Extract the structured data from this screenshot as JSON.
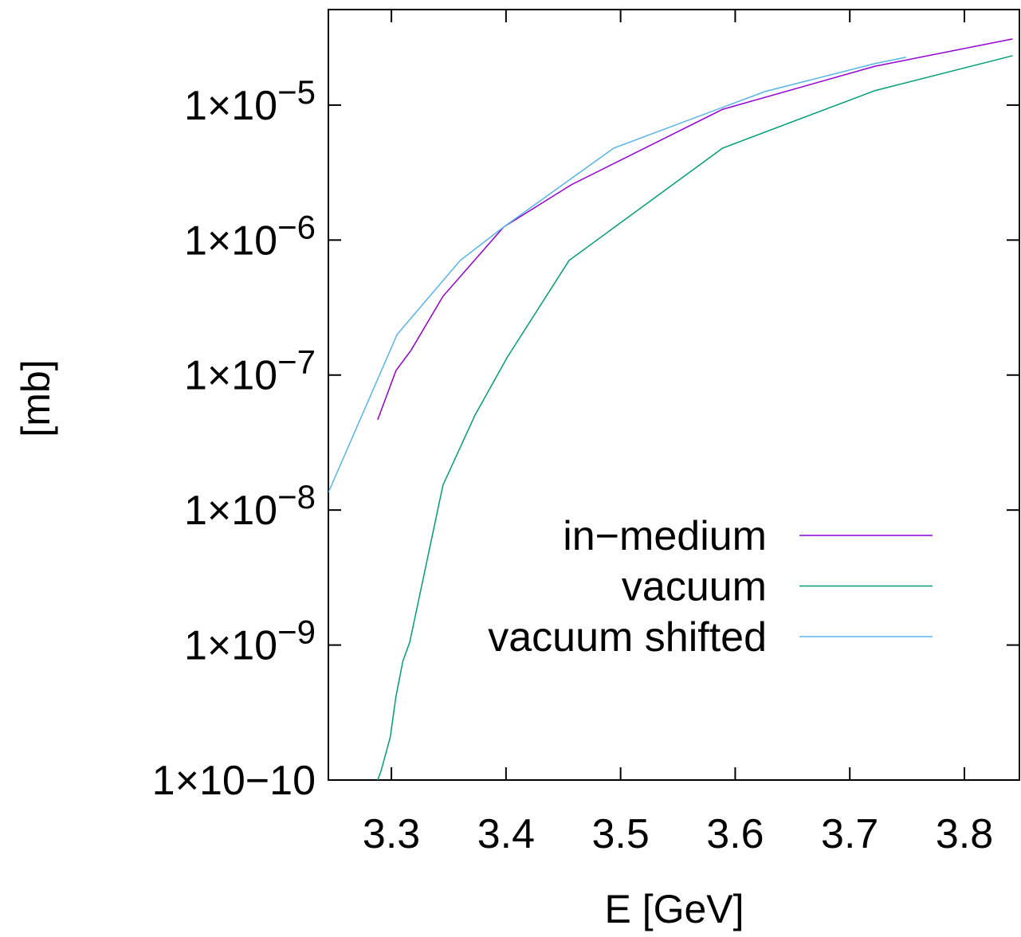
{
  "chart_data": {
    "type": "line",
    "x_label": "E [GeV]",
    "y_label": "[mb]",
    "log_y": true,
    "xlim": [
      3.245,
      3.848
    ],
    "xticks": [
      3.3,
      3.4,
      3.5,
      3.6,
      3.7,
      3.8
    ],
    "ylim": [
      1e-10,
      5.1e-05
    ],
    "yticks": [
      {
        "value": 1e-10,
        "label": "1×10−10"
      },
      {
        "value": 1e-09,
        "label": "1×10−9"
      },
      {
        "value": 1e-08,
        "label": "1×10−8"
      },
      {
        "value": 1e-07,
        "label": "1×10−7"
      },
      {
        "value": 1e-06,
        "label": "1×10−6"
      },
      {
        "value": 1e-05,
        "label": "1×10−5"
      }
    ],
    "legend": "right",
    "series": [
      {
        "name": "in−medium",
        "color": "#9400d3",
        "x": [
          3.288,
          3.304,
          3.317,
          3.345,
          3.373,
          3.398,
          3.457,
          3.589,
          3.722,
          3.842
        ],
        "values": [
          4.66e-08,
          1.08e-07,
          1.52e-07,
          3.83e-07,
          7.16e-07,
          1.25e-06,
          2.57e-06,
          9.3e-06,
          1.94e-05,
          3.09e-05
        ]
      },
      {
        "name": "vacuum",
        "color": "#009e73",
        "x": [
          3.288,
          3.291,
          3.299,
          3.304,
          3.31,
          3.316,
          3.345,
          3.373,
          3.401,
          3.455,
          3.589,
          3.722,
          3.842
        ],
        "values": [
          1e-10,
          1.17e-10,
          2.08e-10,
          4.17e-10,
          7.6e-10,
          1.05e-09,
          1.53e-08,
          5.06e-08,
          1.35e-07,
          7.06e-07,
          4.8e-06,
          1.28e-05,
          2.32e-05
        ]
      },
      {
        "name": "vacuum shifted",
        "color": "#56b4e9",
        "x": [
          3.245,
          3.305,
          3.36,
          3.398,
          3.494,
          3.626,
          3.722,
          3.749
        ],
        "values": [
          1.35e-08,
          2e-07,
          7.06e-07,
          1.25e-06,
          4.8e-06,
          1.26e-05,
          2.03e-05,
          2.26e-05
        ]
      }
    ]
  }
}
